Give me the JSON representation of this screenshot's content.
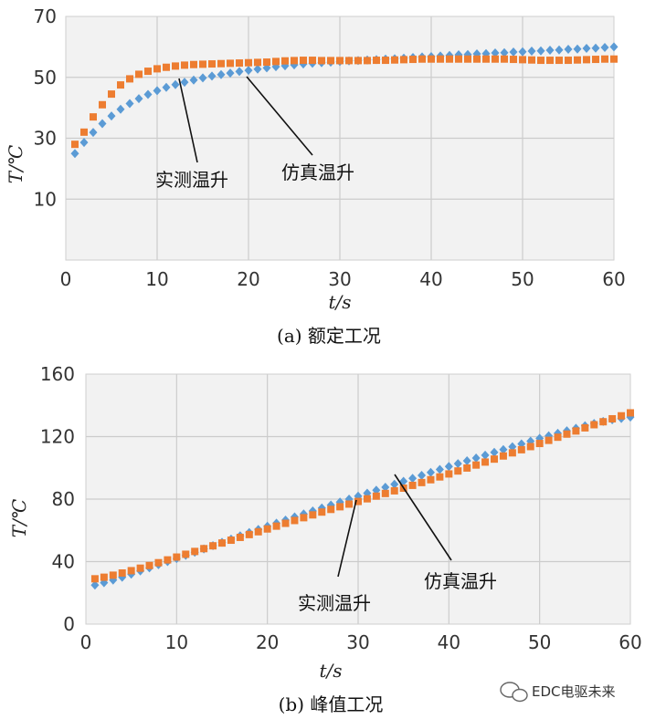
{
  "chart_data": [
    {
      "type": "scatter",
      "caption": "(a) 额定工况",
      "xlabel": "t/s",
      "ylabel": "T/℃",
      "xlim": [
        0,
        60
      ],
      "ylim": [
        -10,
        70
      ],
      "xticks": [
        0,
        10,
        20,
        30,
        40,
        50,
        60
      ],
      "yticks": [
        10,
        30,
        50,
        70
      ],
      "grid": true,
      "series": [
        {
          "name": "仿真温升",
          "color": "#5b9bd5",
          "marker": "diamond",
          "x": [
            1,
            2,
            3,
            4,
            5,
            6,
            7,
            8,
            9,
            10,
            11,
            12,
            13,
            14,
            15,
            16,
            17,
            18,
            19,
            20,
            21,
            22,
            23,
            24,
            25,
            26,
            27,
            28,
            29,
            30,
            31,
            32,
            33,
            34,
            35,
            36,
            37,
            38,
            39,
            40,
            41,
            42,
            43,
            44,
            45,
            46,
            47,
            48,
            49,
            50,
            51,
            52,
            53,
            54,
            55,
            56,
            57,
            58,
            59,
            60
          ],
          "y": [
            25,
            28.6,
            31.9,
            34.8,
            37.3,
            39.5,
            41.4,
            43,
            44.4,
            45.6,
            46.7,
            47.6,
            48.4,
            49.1,
            49.8,
            50.4,
            50.9,
            51.4,
            51.9,
            52.3,
            52.7,
            53.1,
            53.5,
            53.8,
            54.1,
            54.4,
            54.6,
            54.8,
            55,
            55.2,
            55.4,
            55.5,
            55.7,
            55.8,
            56,
            56.1,
            56.3,
            56.5,
            56.7,
            56.8,
            57,
            57.2,
            57.4,
            57.5,
            57.7,
            57.8,
            58,
            58.1,
            58.3,
            58.4,
            58.6,
            58.7,
            58.9,
            59,
            59.2,
            59.3,
            59.5,
            59.6,
            59.8,
            60
          ]
        },
        {
          "name": "实测温升",
          "color": "#ed7d31",
          "marker": "square",
          "x": [
            1,
            2,
            3,
            4,
            5,
            6,
            7,
            8,
            9,
            10,
            11,
            12,
            13,
            14,
            15,
            16,
            17,
            18,
            19,
            20,
            21,
            22,
            23,
            24,
            25,
            26,
            27,
            28,
            29,
            30,
            31,
            32,
            33,
            34,
            35,
            36,
            37,
            38,
            39,
            40,
            41,
            42,
            43,
            44,
            45,
            46,
            47,
            48,
            49,
            50,
            51,
            52,
            53,
            54,
            55,
            56,
            57,
            58,
            59,
            60
          ],
          "y": [
            28,
            32,
            37,
            41,
            44.5,
            47.5,
            49.5,
            51,
            52,
            52.8,
            53.3,
            53.7,
            54,
            54.2,
            54.3,
            54.4,
            54.5,
            54.6,
            54.7,
            54.8,
            54.9,
            55,
            55.2,
            55.4,
            55.5,
            55.6,
            55.6,
            55.5,
            55.5,
            55.5,
            55.5,
            55.5,
            55.5,
            55.6,
            55.6,
            55.7,
            55.8,
            55.9,
            56,
            56,
            56,
            56,
            56,
            56,
            56,
            56,
            56,
            56,
            55.9,
            55.8,
            55.7,
            55.6,
            55.6,
            55.6,
            55.6,
            55.7,
            55.8,
            55.9,
            56,
            56
          ]
        }
      ],
      "annotations": [
        {
          "text": "实测温升"
        },
        {
          "text": "仿真温升"
        }
      ]
    },
    {
      "type": "scatter",
      "caption": "(b) 峰值工况",
      "xlabel": "t/s",
      "ylabel": "T/℃",
      "xlim": [
        0,
        60
      ],
      "ylim": [
        0,
        160
      ],
      "xticks": [
        0,
        10,
        20,
        30,
        40,
        50,
        60
      ],
      "yticks": [
        0,
        40,
        80,
        120,
        160
      ],
      "grid": true,
      "series": [
        {
          "name": "仿真温升",
          "color": "#5b9bd5",
          "marker": "diamond",
          "x": [
            1,
            2,
            3,
            4,
            5,
            6,
            7,
            8,
            9,
            10,
            11,
            12,
            13,
            14,
            15,
            16,
            17,
            18,
            19,
            20,
            21,
            22,
            23,
            24,
            25,
            26,
            27,
            28,
            29,
            30,
            31,
            32,
            33,
            34,
            35,
            36,
            37,
            38,
            39,
            40,
            41,
            42,
            43,
            44,
            45,
            46,
            47,
            48,
            49,
            50,
            51,
            52,
            53,
            54,
            55,
            56,
            57,
            58,
            59,
            60
          ],
          "y": [
            25,
            26.5,
            28.2,
            30,
            32,
            34,
            36,
            38,
            40,
            42,
            44,
            46,
            48.1,
            50.2,
            52.3,
            54.4,
            56.5,
            58.6,
            60.6,
            62.6,
            64.6,
            66.6,
            68.6,
            70.5,
            72.4,
            74.3,
            76.2,
            78.1,
            80,
            81.9,
            83.8,
            85.7,
            87.6,
            89.5,
            91.4,
            93.3,
            95.2,
            97.1,
            99,
            100.9,
            102.7,
            104.5,
            106.3,
            108.1,
            109.9,
            111.7,
            113.5,
            115.3,
            117.1,
            118.9,
            120.5,
            122.1,
            123.7,
            125.3,
            126.9,
            128.4,
            129.7,
            130.8,
            131.6,
            132.5
          ]
        },
        {
          "name": "实测温升",
          "color": "#ed7d31",
          "marker": "square",
          "x": [
            1,
            2,
            3,
            4,
            5,
            6,
            7,
            8,
            9,
            10,
            11,
            12,
            13,
            14,
            15,
            16,
            17,
            18,
            19,
            20,
            21,
            22,
            23,
            24,
            25,
            26,
            27,
            28,
            29,
            30,
            31,
            32,
            33,
            34,
            35,
            36,
            37,
            38,
            39,
            40,
            41,
            42,
            43,
            44,
            45,
            46,
            47,
            48,
            49,
            50,
            51,
            52,
            53,
            54,
            55,
            56,
            57,
            58,
            59,
            60
          ],
          "y": [
            29,
            30,
            31.3,
            32.7,
            34.2,
            35.8,
            37.5,
            39.3,
            41.1,
            42.9,
            44.7,
            46.5,
            48.3,
            50.1,
            51.9,
            53.7,
            55.5,
            57.3,
            59.1,
            60.9,
            62.7,
            64.5,
            66.3,
            68.1,
            69.9,
            71.7,
            73.4,
            75.1,
            76.8,
            78.5,
            80.2,
            81.9,
            83.6,
            85.3,
            87,
            88.8,
            90.6,
            92.4,
            94.2,
            96.1,
            98,
            99.9,
            101.8,
            103.7,
            105.6,
            107.6,
            109.6,
            111.6,
            113.6,
            115.6,
            117.6,
            119.6,
            121.6,
            123.6,
            125.6,
            127.6,
            129.5,
            131.4,
            133.3,
            135.2
          ]
        }
      ],
      "annotations": [
        {
          "text": "实测温升"
        },
        {
          "text": "仿真温升"
        }
      ]
    }
  ],
  "watermark": {
    "text": "EDC电驱未来",
    "icon": "wechat-bubble-icon"
  }
}
